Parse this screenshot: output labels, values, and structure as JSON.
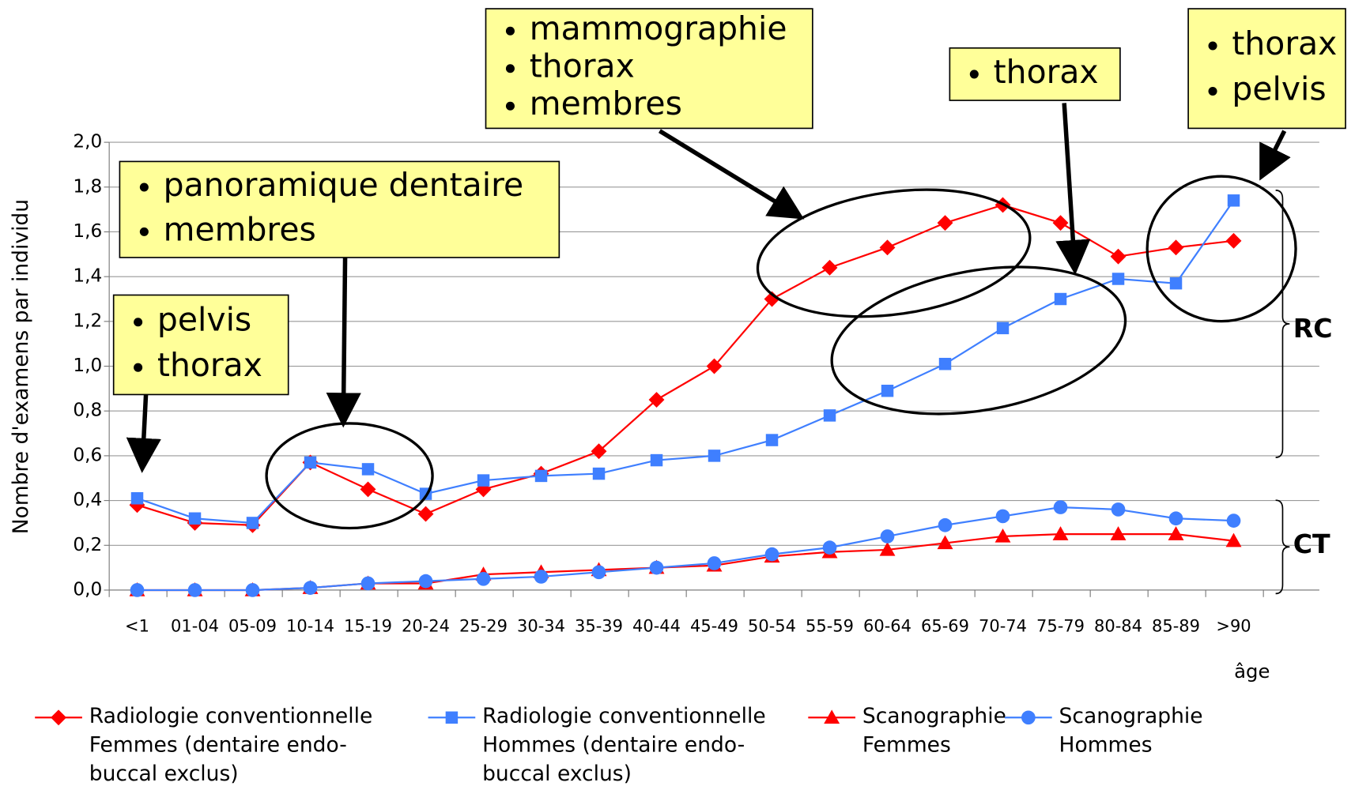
{
  "chart_data": {
    "type": "line",
    "y_axis_label": "Nombre d'examens par individu",
    "x_axis_label": "âge",
    "categories": [
      "<1",
      "01-04",
      "05-09",
      "10-14",
      "15-19",
      "20-24",
      "25-29",
      "30-34",
      "35-39",
      "40-44",
      "45-49",
      "50-54",
      "55-59",
      "60-64",
      "65-69",
      "70-74",
      "75-79",
      "80-84",
      "85-89",
      ">90"
    ],
    "series": [
      {
        "name": "Radiologie conventionnelle Femmes (dentaire endo-buccal exclus)",
        "color": "#ff0000",
        "marker": "diamond",
        "values": [
          0.38,
          0.3,
          0.29,
          0.57,
          0.45,
          0.34,
          0.45,
          0.52,
          0.62,
          0.85,
          1.0,
          1.3,
          1.44,
          1.53,
          1.64,
          1.72,
          1.64,
          1.49,
          1.53,
          1.56
        ]
      },
      {
        "name": "Radiologie conventionnelle Hommes (dentaire endo-buccal exclus)",
        "color": "#3f7fff",
        "marker": "square",
        "values": [
          0.41,
          0.32,
          0.3,
          0.57,
          0.54,
          0.43,
          0.49,
          0.51,
          0.52,
          0.58,
          0.6,
          0.67,
          0.78,
          0.89,
          1.01,
          1.17,
          1.3,
          1.39,
          1.37,
          1.74
        ]
      },
      {
        "name": "Scanographie Femmes",
        "color": "#ff0000",
        "marker": "triangle",
        "values": [
          0.0,
          0.0,
          0.0,
          0.01,
          0.03,
          0.03,
          0.07,
          0.08,
          0.09,
          0.1,
          0.11,
          0.15,
          0.17,
          0.18,
          0.21,
          0.24,
          0.25,
          0.25,
          0.25,
          0.22
        ]
      },
      {
        "name": "Scanographie Hommes",
        "color": "#3f7fff",
        "marker": "circle",
        "values": [
          0.0,
          0.0,
          0.0,
          0.01,
          0.03,
          0.04,
          0.05,
          0.06,
          0.08,
          0.1,
          0.12,
          0.16,
          0.19,
          0.24,
          0.29,
          0.33,
          0.37,
          0.36,
          0.32,
          0.31
        ]
      }
    ],
    "ylim": [
      0,
      2
    ],
    "yticks": [
      {
        "value": 0,
        "label": "0,0"
      },
      {
        "value": 0.2,
        "label": "0,2"
      },
      {
        "value": 0.4,
        "label": "0,4"
      },
      {
        "value": 0.6,
        "label": "0,6"
      },
      {
        "value": 0.8,
        "label": "0,8"
      },
      {
        "value": 1,
        "label": "1,0"
      },
      {
        "value": 1.2,
        "label": "1,2"
      },
      {
        "value": 1.4,
        "label": "1,4"
      },
      {
        "value": 1.6,
        "label": "1,6"
      },
      {
        "value": 1.8,
        "label": "1,8"
      },
      {
        "value": 2,
        "label": "2,0"
      }
    ],
    "grid": true,
    "annotations": [
      {
        "items": [
          "pelvis",
          "thorax"
        ]
      },
      {
        "items": [
          "panoramique dentaire",
          "membres"
        ]
      },
      {
        "items": [
          "mammographie",
          "thorax",
          "membres"
        ]
      },
      {
        "items": [
          "thorax"
        ]
      },
      {
        "items": [
          "thorax",
          "pelvis"
        ]
      }
    ],
    "brace_labels": [
      "RC",
      "CT"
    ]
  }
}
